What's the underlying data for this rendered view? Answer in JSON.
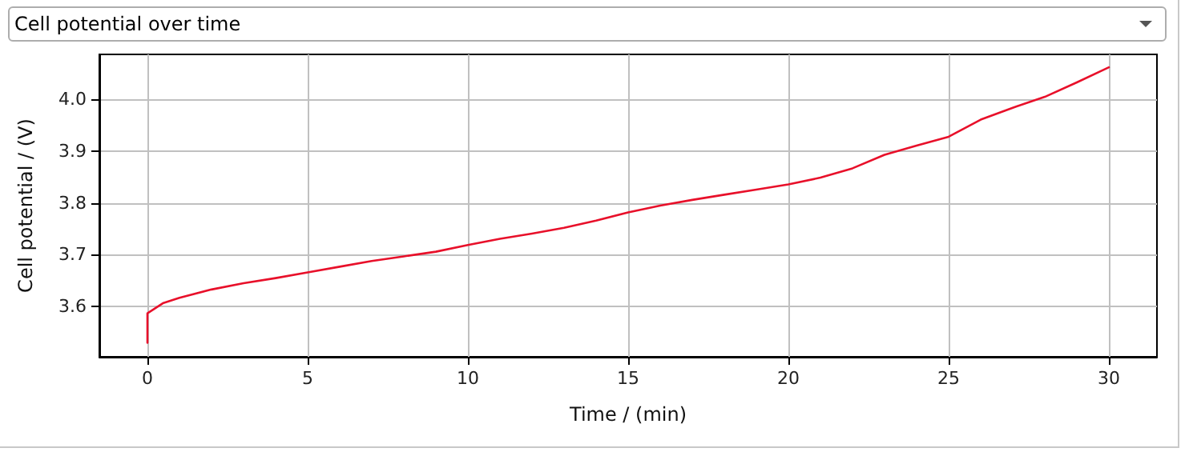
{
  "chart_data": {
    "type": "line",
    "title": "Cell potential over time",
    "xlabel": "Time / (min)",
    "ylabel": "Cell potential / (V)",
    "series": [
      {
        "color": "#e8102a",
        "x": [
          0,
          0,
          0.5,
          1,
          2,
          3,
          4,
          5,
          6,
          7,
          8,
          9,
          10,
          11,
          12,
          13,
          14,
          15,
          16,
          17,
          18,
          19,
          20,
          21,
          22,
          23,
          24,
          25,
          26,
          27,
          28,
          29,
          30
        ],
        "values": [
          3.53,
          3.587,
          3.607,
          3.617,
          3.633,
          3.645,
          3.655,
          3.666,
          3.677,
          3.688,
          3.697,
          3.706,
          3.719,
          3.731,
          3.741,
          3.752,
          3.766,
          3.782,
          3.795,
          3.806,
          3.816,
          3.826,
          3.836,
          3.849,
          3.867,
          3.893,
          3.911,
          3.928,
          3.961,
          3.984,
          4.005,
          4.033,
          4.062
        ]
      }
    ],
    "xlim": [
      -1.5,
      31.5
    ],
    "xticks": [
      0,
      5,
      10,
      15,
      20,
      25,
      30
    ],
    "ylim": [
      3.503,
      4.087
    ],
    "yticks": [
      3.6,
      3.7,
      3.8,
      3.9,
      {
        "value": 4,
        "label": "4.0"
      }
    ],
    "grid": true,
    "marker": "none",
    "line_style": "solid"
  }
}
